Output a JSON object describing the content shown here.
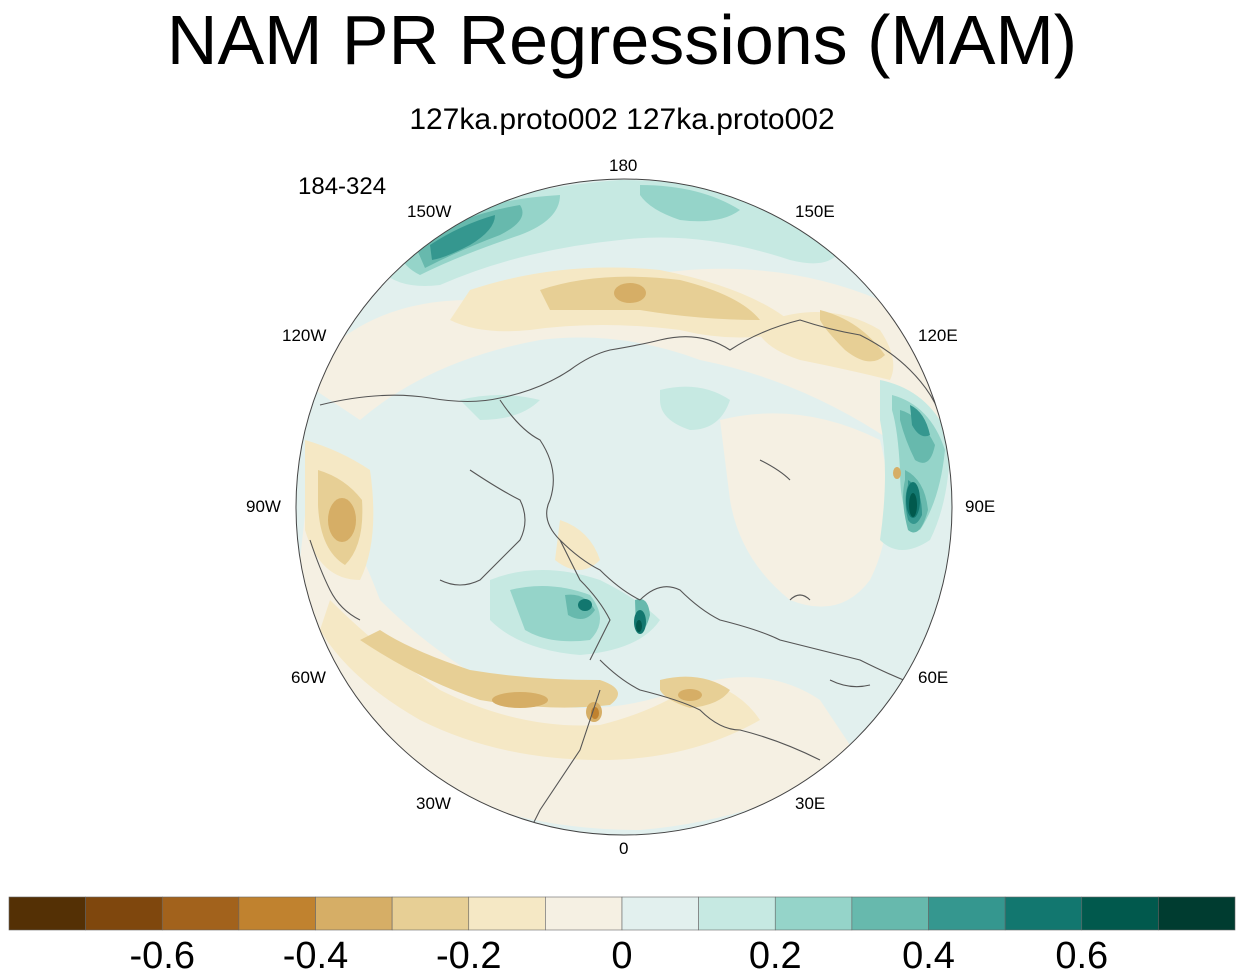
{
  "figure": {
    "title": "NAM PR Regressions (MAM)",
    "subtitle": "127ka.proto002  127ka.proto002",
    "period": "184-324"
  },
  "map": {
    "projection": "north-polar-stereographic",
    "longitude_labels": {
      "top": "180",
      "top_right": "150E",
      "right_upper": "120E",
      "right": "90E",
      "right_lower": "60E",
      "bottom_right": "30E",
      "bottom": "0",
      "bottom_left": "30W",
      "left_lower": "60W",
      "left": "90W",
      "left_upper": "120W",
      "top_left": "150W"
    },
    "colors": {
      "background": "#e2f0ee",
      "coastline": "#555555",
      "border": "#444444"
    }
  },
  "colorbar": {
    "colors": [
      "#543005",
      "#7f470d",
      "#a2621c",
      "#c0822f",
      "#d6ae66",
      "#e7cf95",
      "#f5e8c5",
      "#f5f0e3",
      "#e2f0ee",
      "#c6e9e2",
      "#95d4c9",
      "#67b9ad",
      "#35978f",
      "#12776f",
      "#01594d",
      "#003c30"
    ],
    "labels": [
      "-0.6",
      "-0.4",
      "-0.2",
      "0",
      "0.2",
      "0.4",
      "0.6"
    ]
  }
}
